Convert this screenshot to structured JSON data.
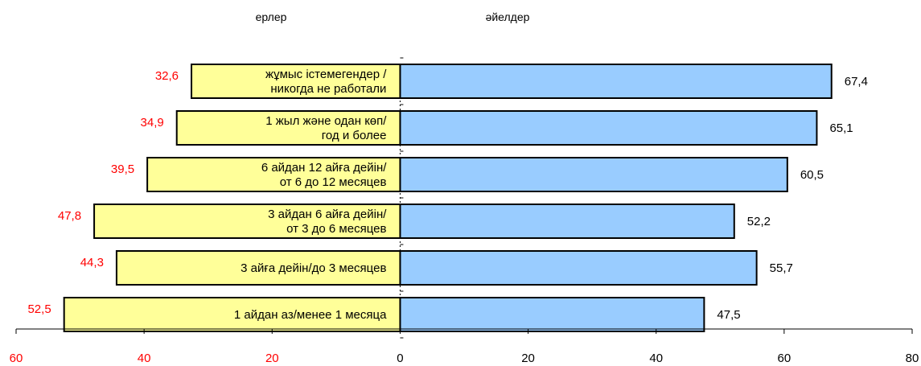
{
  "chart_data": {
    "type": "bar",
    "orientation": "horizontal",
    "layout": "population-pyramid",
    "series": [
      {
        "name": "ерлер",
        "side": "left",
        "color": "#ffff99",
        "label_color": "#ff0000",
        "values": [
          32.6,
          34.9,
          39.5,
          47.8,
          44.3,
          52.5
        ],
        "value_labels": [
          "32,6",
          "34,9",
          "39,5",
          "47,8",
          "44,3",
          "52,5"
        ]
      },
      {
        "name": "әйелдер",
        "side": "right",
        "color": "#99ccff",
        "label_color": "#000000",
        "values": [
          67.4,
          65.1,
          60.5,
          52.2,
          55.7,
          47.5
        ],
        "value_labels": [
          "67,4",
          "65,1",
          "60,5",
          "52,2",
          "55,7",
          "47,5"
        ]
      }
    ],
    "categories": [
      [
        "жұмыс істемегендер /",
        "никогда не работали"
      ],
      [
        "1 жыл және одан көп/",
        "год и более"
      ],
      [
        "6 айдан 12 айға дейін/",
        "от 6 до 12 месяцев"
      ],
      [
        "3 айдан 6 айға дейін/",
        "от 3 до 6 месяцев"
      ],
      [
        "3 айға дейін/до 3 месяцев"
      ],
      [
        "1 айдан аз/менее 1 месяца"
      ]
    ],
    "x_axis": {
      "range": [
        -60,
        80
      ],
      "ticks": [
        -60,
        -40,
        -20,
        0,
        20,
        40,
        60,
        80
      ],
      "tick_labels": [
        "60",
        "40",
        "20",
        "0",
        "20",
        "40",
        "60",
        "80"
      ],
      "negative_tick_color": "#ff0000",
      "positive_tick_color": "#000000"
    },
    "grid": false,
    "legend": "none"
  }
}
